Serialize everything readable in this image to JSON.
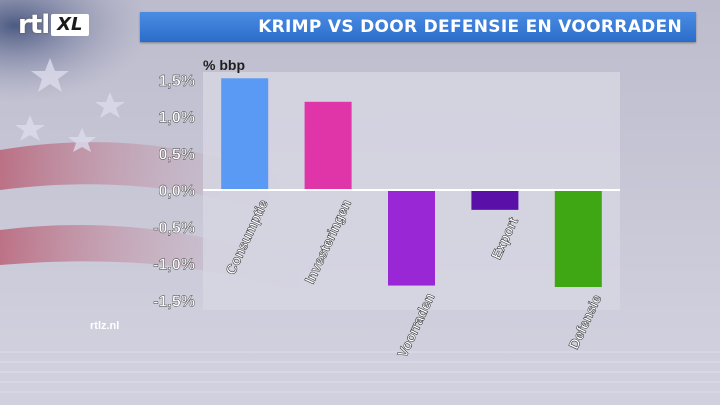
{
  "channel": {
    "logo_main": "rtl",
    "logo_badge": "XL",
    "website": "rtlz.nl"
  },
  "header": {
    "title": "KRIMP VS DOOR DEFENSIE EN VOORRADEN"
  },
  "colors": {
    "title_bar": "#3a7dd8",
    "plot_area": "#d6d5e2"
  },
  "chart_data": {
    "type": "bar",
    "title": "",
    "xlabel": "",
    "ylabel": "% bbp",
    "categories": [
      "Consumptie",
      "Investeringen",
      "Voorraden",
      "Export",
      "Defensie"
    ],
    "values": [
      1.52,
      1.2,
      -1.3,
      -0.27,
      -1.32
    ],
    "colors": [
      "#5a9af5",
      "#e035a8",
      "#9a27d6",
      "#5a0fa8",
      "#3fa614"
    ],
    "ylim": [
      -1.6,
      1.6
    ],
    "yticks": [
      1.5,
      1.0,
      0.5,
      0.0,
      -0.5,
      -1.0,
      -1.5
    ],
    "ytick_labels": [
      "1,5%",
      "1,0%",
      "0,5%",
      "0,0%",
      "-0,5%",
      "-1,0%",
      "-1,5%"
    ],
    "grid": false,
    "legend": "none"
  }
}
